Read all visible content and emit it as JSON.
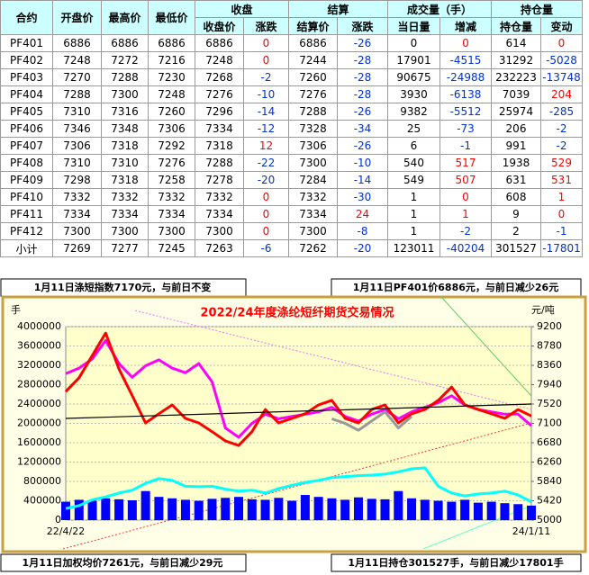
{
  "table": {
    "header_groups": [
      "合约",
      "开盘价",
      "最高价",
      "最低价",
      "收盘",
      "结算",
      "成交量（手）",
      "持仓量"
    ],
    "sub_headers": [
      "收盘价",
      "涨跌",
      "结算价",
      "涨跌",
      "当日量",
      "增减",
      "持仓量",
      "变动"
    ],
    "rows": [
      [
        "PF401",
        6886,
        6886,
        6886,
        6886,
        0,
        6886,
        -26,
        0,
        0,
        614,
        0
      ],
      [
        "PF402",
        7248,
        7272,
        7216,
        7248,
        0,
        7244,
        -28,
        17901,
        -4515,
        31292,
        -5028
      ],
      [
        "PF403",
        7270,
        7288,
        7230,
        7268,
        -2,
        7260,
        -28,
        90675,
        -24988,
        232223,
        -13748
      ],
      [
        "PF404",
        7288,
        7300,
        7248,
        7276,
        -10,
        7276,
        -28,
        3930,
        -6138,
        7039,
        204
      ],
      [
        "PF405",
        7310,
        7316,
        7260,
        7296,
        -14,
        7288,
        -26,
        9382,
        -5512,
        25974,
        -285
      ],
      [
        "PF406",
        7346,
        7348,
        7306,
        7334,
        -12,
        7328,
        -34,
        25,
        -73,
        206,
        -2
      ],
      [
        "PF407",
        7306,
        7318,
        7292,
        7318,
        12,
        7306,
        -26,
        6,
        -1,
        991,
        -2
      ],
      [
        "PF408",
        7310,
        7310,
        7276,
        7288,
        -22,
        7300,
        -10,
        540,
        517,
        1938,
        529
      ],
      [
        "PF409",
        7298,
        7318,
        7258,
        7278,
        -20,
        7284,
        -14,
        549,
        507,
        631,
        531
      ],
      [
        "PF410",
        7332,
        7332,
        7332,
        7332,
        0,
        7332,
        -30,
        1,
        0,
        608,
        1
      ],
      [
        "PF411",
        7334,
        7334,
        7334,
        7334,
        0,
        7334,
        24,
        1,
        1,
        9,
        0
      ],
      [
        "PF412",
        7300,
        7300,
        7300,
        7300,
        0,
        7300,
        -8,
        1,
        -2,
        2,
        -1
      ],
      [
        "小计",
        7269,
        7277,
        7245,
        7263,
        -6,
        7262,
        -20,
        123011,
        -40204,
        301527,
        -17801
      ]
    ]
  },
  "notes": [
    "1月11日涤短指数7170元，与前日不变",
    "1月11日PF401价6886元，与前日减少26元",
    "1月11日加权均价7261元，与前日减少29元",
    "1月11日持仓301527手，与前日减少17801手"
  ],
  "chart_data": {
    "type": "line",
    "title": "2022/24年度涤纶短纤期货交易情况",
    "y_label": "手",
    "y2_label": "元/吨",
    "grid": true,
    "categories": [
      "22/4/22",
      null,
      null,
      null,
      null,
      null,
      null,
      null,
      null,
      null,
      null,
      null,
      null,
      null,
      null,
      null,
      null,
      null,
      null,
      null,
      null,
      null,
      null,
      null,
      null,
      null,
      null,
      null,
      null,
      null,
      null,
      null,
      null,
      null,
      null,
      "24/1/11"
    ],
    "ylim": [
      0,
      4000000
    ],
    "yticks": [
      0,
      400000,
      800000,
      1200000,
      1600000,
      2000000,
      2400000,
      2800000,
      3200000,
      3600000,
      4000000
    ],
    "y2lim": [
      5000,
      9200
    ],
    "y2ticks": [
      5000,
      5420,
      5840,
      6260,
      6680,
      7100,
      7520,
      7940,
      8360,
      8780,
      9200
    ],
    "series": [
      {
        "type": "bar",
        "color": "#0000ff",
        "values": [
          380000,
          420000,
          400000,
          450000,
          430000,
          410000,
          600000,
          480000,
          450000,
          420000,
          400000,
          440000,
          460000,
          480000,
          430000,
          420000,
          460000,
          400000,
          520000,
          480000,
          450000,
          420000,
          470000,
          440000,
          430000,
          600000,
          450000,
          420000,
          400000,
          380000,
          420000,
          360000,
          380000,
          350000,
          330000,
          300000
        ]
      },
      {
        "color": "#00ffff",
        "values": [
          240000,
          300000,
          420000,
          480000,
          560000,
          620000,
          760000,
          860000,
          820000,
          700000,
          690000,
          700000,
          640000,
          600000,
          620000,
          560000,
          650000,
          720000,
          780000,
          820000,
          880000,
          900000,
          920000,
          930000,
          950000,
          1000000,
          1060000,
          1080000,
          700000,
          560000,
          500000,
          540000,
          560000,
          600000,
          520000,
          380000
        ]
      },
      {
        "color": "#ff00ff",
        "axis": "y2",
        "values": [
          8180,
          8300,
          8500,
          8900,
          8400,
          8100,
          8350,
          8480,
          8300,
          8200,
          8400,
          8000,
          7000,
          6800,
          7100,
          7300,
          7200,
          7250,
          7300,
          7350,
          7450,
          7250,
          7150,
          7300,
          7400,
          7200,
          7350,
          7450,
          7550,
          7700,
          7500,
          7400,
          7350,
          7300,
          7300,
          7050
        ]
      },
      {
        "color": "#999999",
        "axis": "y2",
        "values": [
          null,
          null,
          null,
          null,
          null,
          null,
          null,
          null,
          null,
          null,
          null,
          null,
          null,
          null,
          null,
          null,
          null,
          null,
          null,
          null,
          7200,
          7100,
          6950,
          7150,
          7350,
          7000,
          7250,
          null,
          null,
          null,
          null,
          null,
          null,
          null,
          null,
          null
        ]
      },
      {
        "color": "#ff0000",
        "axis": "y2",
        "values": [
          7790,
          8090,
          8575,
          9060,
          8280,
          7700,
          7110,
          7310,
          7500,
          7210,
          7110,
          6920,
          6720,
          6620,
          6920,
          7400,
          7110,
          7210,
          7310,
          7500,
          7600,
          7210,
          7110,
          7400,
          7500,
          7110,
          7310,
          7400,
          7600,
          7890,
          7500,
          7400,
          7310,
          7210,
          7400,
          7260
        ]
      }
    ]
  }
}
